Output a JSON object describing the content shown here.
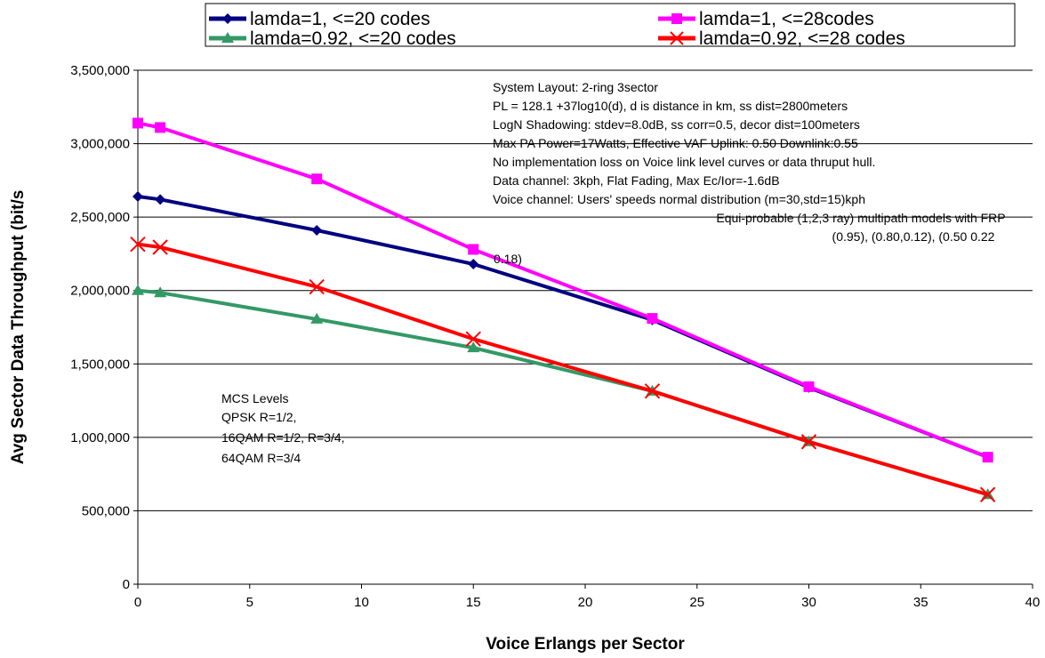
{
  "chart_data": {
    "type": "line",
    "title": "",
    "xlabel": "Voice Erlangs per Sector",
    "ylabel": "Avg Sector Data Throughput (bit/s",
    "xlim": [
      0,
      40
    ],
    "ylim": [
      0,
      3500000
    ],
    "x_ticks": [
      "0",
      "5",
      "10",
      "15",
      "20",
      "25",
      "30",
      "35",
      "40"
    ],
    "y_ticks": [
      "0",
      "500,000",
      "1,000,000",
      "1,500,000",
      "2,000,000",
      "2,500,000",
      "3,000,000",
      "3,500,000"
    ],
    "grid": "horizontal",
    "legend_position": "top",
    "series": [
      {
        "name": "lamda=1, <=20 codes",
        "color": "#000080",
        "marker": "diamond",
        "x": [
          0,
          1,
          8,
          15,
          23,
          30,
          38
        ],
        "values": [
          2640000,
          2620000,
          2410000,
          2180000,
          1800000,
          1340000,
          865000
        ]
      },
      {
        "name": "lamda=1, <=28codes",
        "color": "#ff00ff",
        "marker": "square",
        "x": [
          0,
          1,
          8,
          15,
          23,
          30,
          38
        ],
        "values": [
          3140000,
          3110000,
          2760000,
          2280000,
          1810000,
          1345000,
          865000
        ]
      },
      {
        "name": "lamda=0.92, <=20 codes",
        "color": "#339966",
        "marker": "triangle",
        "x": [
          0,
          1,
          8,
          15,
          23,
          30,
          38
        ],
        "values": [
          2000000,
          1985000,
          1805000,
          1610000,
          1315000,
          970000,
          610000
        ]
      },
      {
        "name": "lamda=0.92, <=28 codes",
        "color": "#ff0000",
        "marker": "x",
        "x": [
          0,
          1,
          8,
          15,
          23,
          30,
          38
        ],
        "values": [
          2315000,
          2295000,
          2025000,
          1670000,
          1315000,
          970000,
          610000
        ]
      }
    ],
    "annotations": {
      "system": [
        "System Layout: 2-ring 3sector",
        "PL = 128.1 +37log10(d), d is distance in km, ss dist=2800meters",
        "LogN Shadowing: stdev=8.0dB, ss corr=0.5, decor dist=100meters",
        "Max PA Power=17Watts,  Effective VAF Uplink: 0.50  Downlink:0.55",
        "No implementation loss on Voice link level curves or data thruput hull.",
        "Data channel: 3kph, Flat Fading, Max Ec/Ior=-1.6dB",
        "Voice channel: Users' speeds normal distribution (m=30,std=15)kph"
      ],
      "multipath": [
        "Equi-probable (1,2,3 ray) multipath models with FRP",
        "(0.95), (0.80,0.12), (0.50 0.22"
      ],
      "fragment": "0.18)",
      "mcs": [
        "MCS Levels",
        "QPSK R=1/2,",
        "16QAM R=1/2, R=3/4,",
        "64QAM R=3/4"
      ]
    }
  }
}
